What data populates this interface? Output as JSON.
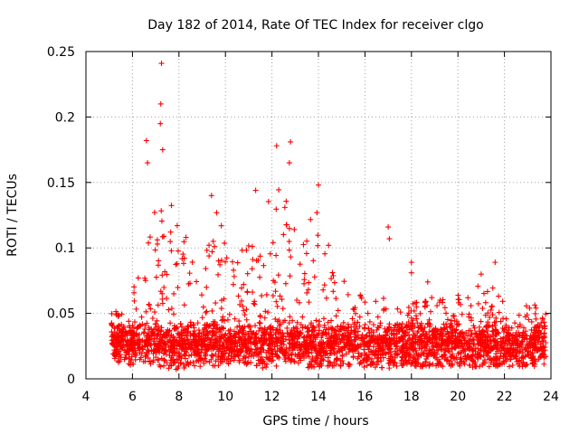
{
  "chart_data": {
    "type": "scatter",
    "title": "Day 182 of 2014, Rate Of TEC Index for receiver clgo",
    "xlabel": "GPS time / hours",
    "ylabel": "ROTI / TECUs",
    "xlim": [
      4,
      24
    ],
    "ylim": [
      0,
      0.25
    ],
    "x_ticks": [
      4,
      6,
      8,
      10,
      12,
      14,
      16,
      18,
      20,
      22,
      24
    ],
    "x_tick_labels": [
      "4",
      "6",
      "8",
      "10",
      "12",
      "14",
      "16",
      "18",
      "20",
      "22",
      "24"
    ],
    "y_ticks": [
      0,
      0.05,
      0.1,
      0.15,
      0.2,
      0.25
    ],
    "y_tick_labels": [
      "0",
      "0.05",
      "0.1",
      "0.15",
      "0.2",
      "0.25"
    ],
    "grid": true,
    "marker": "+",
    "color": "#ff0000",
    "data_start_hour": 5.1,
    "data_end_hour": 23.8,
    "notable_points": [
      {
        "x": 7.25,
        "y": 0.241
      },
      {
        "x": 7.22,
        "y": 0.21
      },
      {
        "x": 7.2,
        "y": 0.195
      },
      {
        "x": 6.6,
        "y": 0.182
      },
      {
        "x": 6.65,
        "y": 0.165
      },
      {
        "x": 7.3,
        "y": 0.175
      },
      {
        "x": 12.2,
        "y": 0.178
      },
      {
        "x": 12.8,
        "y": 0.181
      },
      {
        "x": 12.75,
        "y": 0.165
      },
      {
        "x": 14.0,
        "y": 0.148
      },
      {
        "x": 11.3,
        "y": 0.144
      },
      {
        "x": 9.4,
        "y": 0.14
      },
      {
        "x": 17.0,
        "y": 0.116
      },
      {
        "x": 17.05,
        "y": 0.107
      },
      {
        "x": 18.0,
        "y": 0.089
      },
      {
        "x": 18.0,
        "y": 0.081
      },
      {
        "x": 18.7,
        "y": 0.074
      },
      {
        "x": 21.0,
        "y": 0.08
      },
      {
        "x": 21.6,
        "y": 0.089
      }
    ],
    "envelope": {
      "hours": [
        5.1,
        5.5,
        6.0,
        6.5,
        7.0,
        7.5,
        8.0,
        8.5,
        9.0,
        9.5,
        10.0,
        10.5,
        11.0,
        11.5,
        12.0,
        12.5,
        13.0,
        13.5,
        14.0,
        14.5,
        15.0,
        15.5,
        16.0,
        16.5,
        17.0,
        17.5,
        18.0,
        18.5,
        19.0,
        19.5,
        20.0,
        20.5,
        21.0,
        21.5,
        22.0,
        22.5,
        23.0,
        23.5,
        23.8
      ],
      "upper": [
        0.05,
        0.055,
        0.065,
        0.11,
        0.13,
        0.14,
        0.13,
        0.1,
        0.08,
        0.13,
        0.12,
        0.09,
        0.11,
        0.13,
        0.14,
        0.15,
        0.13,
        0.12,
        0.13,
        0.1,
        0.09,
        0.07,
        0.06,
        0.065,
        0.06,
        0.055,
        0.06,
        0.06,
        0.065,
        0.06,
        0.065,
        0.07,
        0.075,
        0.07,
        0.06,
        0.055,
        0.06,
        0.055,
        0.05
      ],
      "lower": [
        0.014,
        0.012,
        0.01,
        0.012,
        0.01,
        0.008,
        0.007,
        0.01,
        0.009,
        0.01,
        0.009,
        0.01,
        0.01,
        0.008,
        0.009,
        0.01,
        0.01,
        0.008,
        0.008,
        0.01,
        0.009,
        0.01,
        0.008,
        0.009,
        0.008,
        0.01,
        0.01,
        0.009,
        0.01,
        0.009,
        0.01,
        0.009,
        0.008,
        0.01,
        0.009,
        0.01,
        0.009,
        0.01,
        0.01
      ]
    }
  }
}
